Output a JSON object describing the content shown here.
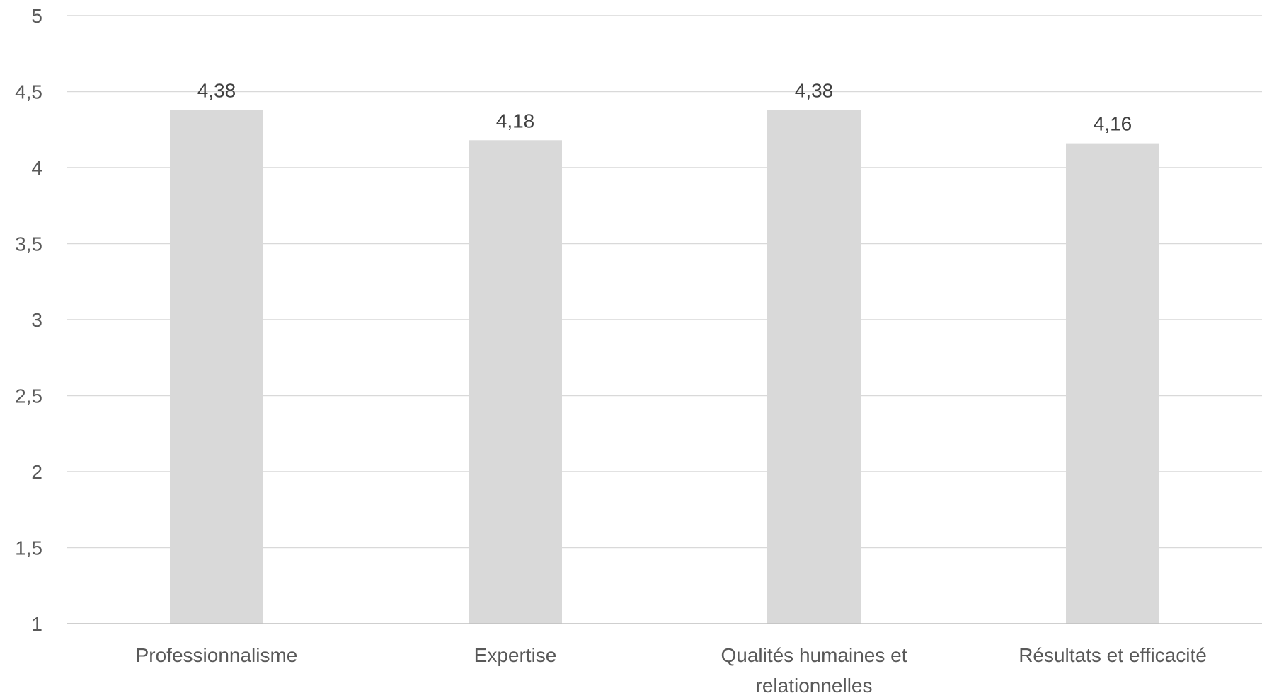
{
  "chart_data": {
    "type": "bar",
    "title": "",
    "xlabel": "",
    "ylabel": "",
    "categories": [
      [
        "Professionnalisme"
      ],
      [
        "Expertise"
      ],
      [
        "Qualités humaines et",
        "relationnelles"
      ],
      [
        "Résultats et efficacité"
      ]
    ],
    "values": [
      4.38,
      4.18,
      4.38,
      4.16
    ],
    "value_labels": [
      "4,38",
      "4,18",
      "4,38",
      "4,16"
    ],
    "ylim": [
      1,
      5
    ],
    "yticks": [
      1,
      1.5,
      2,
      2.5,
      3,
      3.5,
      4,
      4.5,
      5
    ],
    "ytick_labels": [
      "1",
      "1,5",
      "2",
      "2,5",
      "3",
      "3,5",
      "4",
      "4,5",
      "5"
    ],
    "grid": true,
    "legend": "none",
    "colors": {
      "bar": "#d9d9d9",
      "grid": "#d9d9d9",
      "axis": "#bfbfbf"
    }
  }
}
